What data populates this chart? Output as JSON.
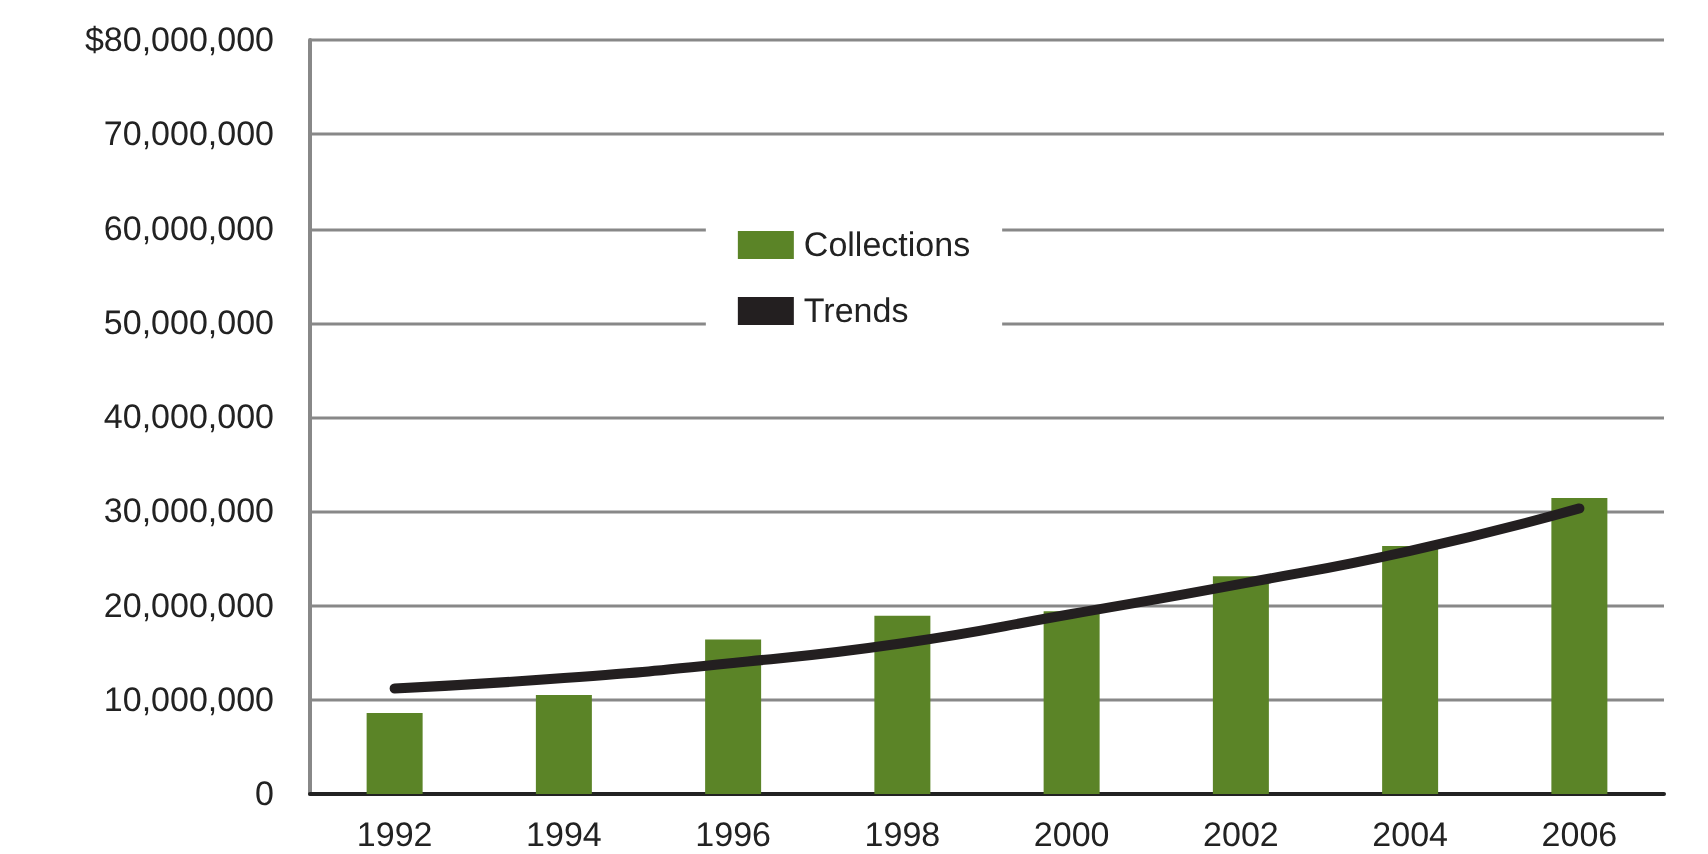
{
  "chart_data": {
    "type": "bar",
    "categories": [
      "1992",
      "1994",
      "1996",
      "1998",
      "2000",
      "2002",
      "2004",
      "2006"
    ],
    "series": [
      {
        "name": "Collections",
        "color": "#5b8427",
        "values": [
          8600000.0,
          10500000.0,
          16400000.0,
          18900000.0,
          19400000.0,
          23100000.0,
          26300000.0,
          31400000.0
        ]
      },
      {
        "name": "Trends",
        "type": "line",
        "color": "#231f20",
        "values": [
          11200000.0,
          12300000.0,
          13900000.0,
          16000000.0,
          19100000.0,
          22300000.0,
          25800000.0,
          30300000.0
        ]
      }
    ],
    "ylim": [
      0,
      80000000
    ],
    "yticks": [
      0,
      {
        "value": 10000000,
        "label": "10,000,000"
      },
      {
        "value": 20000000,
        "label": "20,000,000"
      },
      {
        "value": 30000000,
        "label": "30,000,000"
      },
      {
        "value": 40000000,
        "label": "40,000,000"
      },
      {
        "value": 50000000,
        "label": "50,000,000"
      },
      {
        "value": 60000000,
        "label": "60,000,000"
      },
      {
        "value": 70000000,
        "label": "70,000,000"
      },
      {
        "value": 80000000,
        "label": "$80,000,000"
      }
    ],
    "grid": "y",
    "legend": "top",
    "marker": "none",
    "line_style": "solid"
  }
}
